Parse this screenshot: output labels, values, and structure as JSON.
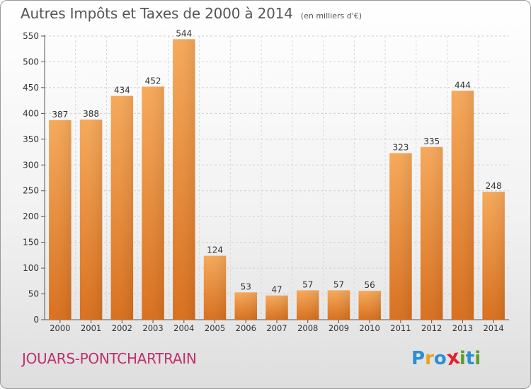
{
  "header": {
    "title": "Autres Impôts et Taxes de 2000 à 2014",
    "subtitle": "(en milliers d'€)"
  },
  "footer": {
    "commune": "JOUARS-PONTCHARTRAIN",
    "logo_letters": [
      "P",
      "r",
      "o",
      "x",
      "i",
      "t",
      "i"
    ],
    "logo_colors": [
      "#2a8fd6",
      "#e8a21c",
      "#2a8fd6",
      "#e0222e",
      "#5aa02c",
      "#2a8fd6",
      "#5aa02c"
    ]
  },
  "chart_data": {
    "type": "bar",
    "categories": [
      "2000",
      "2001",
      "2002",
      "2003",
      "2004",
      "2005",
      "2006",
      "2007",
      "2008",
      "2009",
      "2010",
      "2011",
      "2012",
      "2013",
      "2014"
    ],
    "values": [
      387,
      388,
      434,
      452,
      544,
      124,
      53,
      47,
      57,
      57,
      56,
      323,
      335,
      444,
      248
    ],
    "ylim": [
      0,
      550
    ],
    "yticks": [
      0,
      50,
      100,
      150,
      200,
      250,
      300,
      350,
      400,
      450,
      500,
      550
    ],
    "grid": true,
    "bar_color": "#f0963a"
  }
}
